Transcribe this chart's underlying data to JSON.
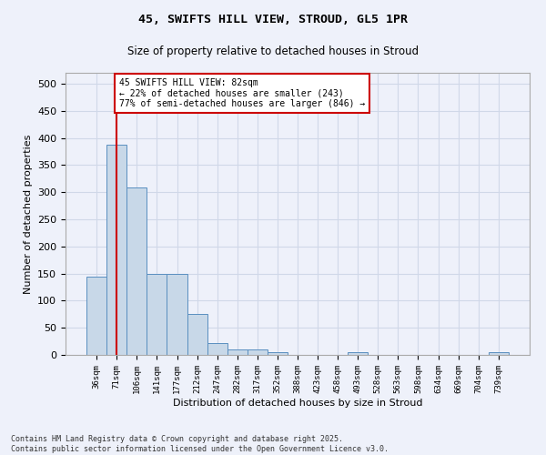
{
  "title1": "45, SWIFTS HILL VIEW, STROUD, GL5 1PR",
  "title2": "Size of property relative to detached houses in Stroud",
  "xlabel": "Distribution of detached houses by size in Stroud",
  "ylabel": "Number of detached properties",
  "bins": [
    "36sqm",
    "71sqm",
    "106sqm",
    "141sqm",
    "177sqm",
    "212sqm",
    "247sqm",
    "282sqm",
    "317sqm",
    "352sqm",
    "388sqm",
    "423sqm",
    "458sqm",
    "493sqm",
    "528sqm",
    "563sqm",
    "598sqm",
    "634sqm",
    "669sqm",
    "704sqm",
    "739sqm"
  ],
  "values": [
    145,
    388,
    308,
    150,
    150,
    75,
    22,
    10,
    10,
    5,
    0,
    0,
    0,
    5,
    0,
    0,
    0,
    0,
    0,
    0,
    5
  ],
  "bar_color": "#c8d8e8",
  "bar_edge_color": "#5a8fc0",
  "grid_color": "#d0d8e8",
  "background_color": "#eef1fa",
  "vline_x": 1,
  "vline_color": "#cc0000",
  "annotation_text": "45 SWIFTS HILL VIEW: 82sqm\n← 22% of detached houses are smaller (243)\n77% of semi-detached houses are larger (846) →",
  "annotation_box_color": "#ffffff",
  "annotation_box_edge": "#cc0000",
  "footer": "Contains HM Land Registry data © Crown copyright and database right 2025.\nContains public sector information licensed under the Open Government Licence v3.0.",
  "ylim": [
    0,
    520
  ],
  "yticks": [
    0,
    50,
    100,
    150,
    200,
    250,
    300,
    350,
    400,
    450,
    500
  ]
}
